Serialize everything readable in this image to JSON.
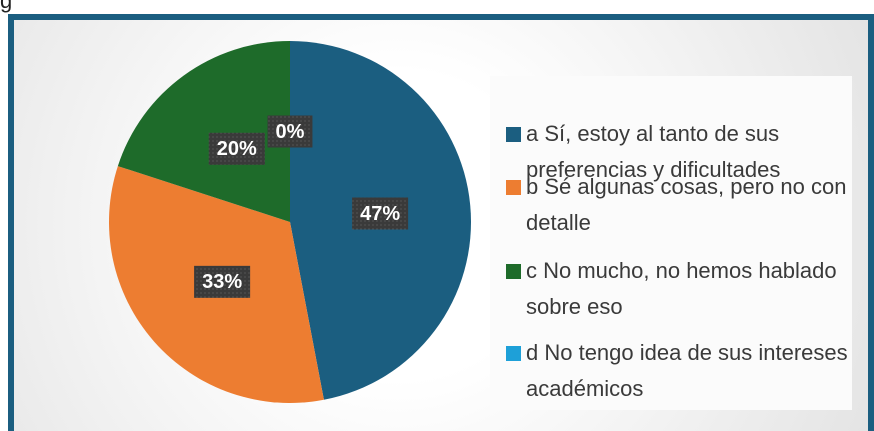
{
  "page_fragment": "g",
  "chart_data": {
    "type": "pie",
    "categories": [
      "a  Sí, estoy al tanto de sus preferencias y dificultades",
      "b  Sé algunas cosas, pero no con detalle",
      "c  No mucho, no hemos hablado sobre eso",
      "d  No tengo idea de sus intereses académicos"
    ],
    "values": [
      47,
      33,
      20,
      0
    ],
    "value_labels": [
      "47%",
      "33%",
      "20%",
      "0%"
    ],
    "colors": [
      "#1b5e80",
      "#ed7d31",
      "#1e6b2a",
      "#1ea0d8"
    ],
    "legend": "right"
  }
}
